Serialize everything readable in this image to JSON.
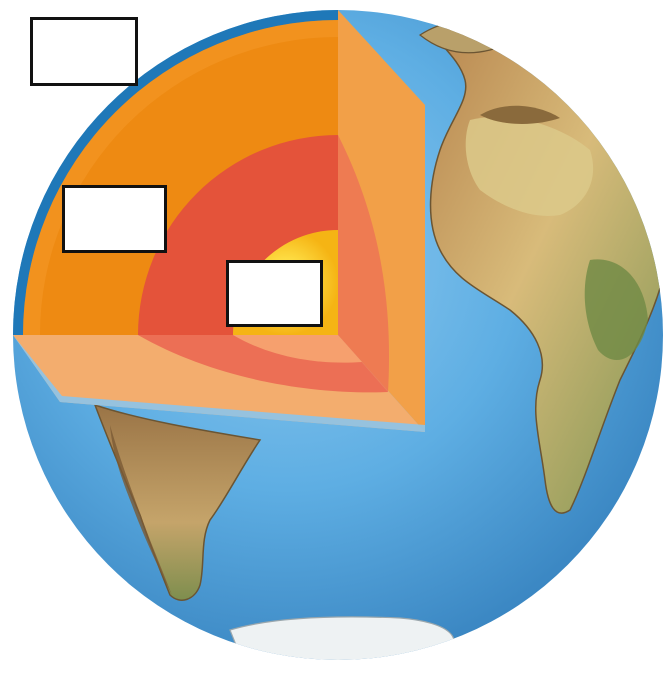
{
  "diagram": {
    "subject": "earth-interior-cutaway",
    "layers": [
      {
        "id": "crust",
        "color": "#1f78b8"
      },
      {
        "id": "mantle",
        "color": "#ee8a12"
      },
      {
        "id": "outer-core",
        "color": "#e4533a"
      },
      {
        "id": "inner-core",
        "color": "#fbd315"
      }
    ],
    "colors": {
      "ocean": "#5eaee3",
      "ocean_dark": "#3f8fca",
      "land": "#c9a56a",
      "land_green": "#7d9452",
      "land_dark": "#8a6a3c",
      "cut_face_light": "#f3ad6e",
      "cut_face_mid": "#ec6f55"
    },
    "labels": [
      {
        "id": "label-1",
        "text": ""
      },
      {
        "id": "label-2",
        "text": ""
      },
      {
        "id": "label-3",
        "text": ""
      }
    ]
  }
}
